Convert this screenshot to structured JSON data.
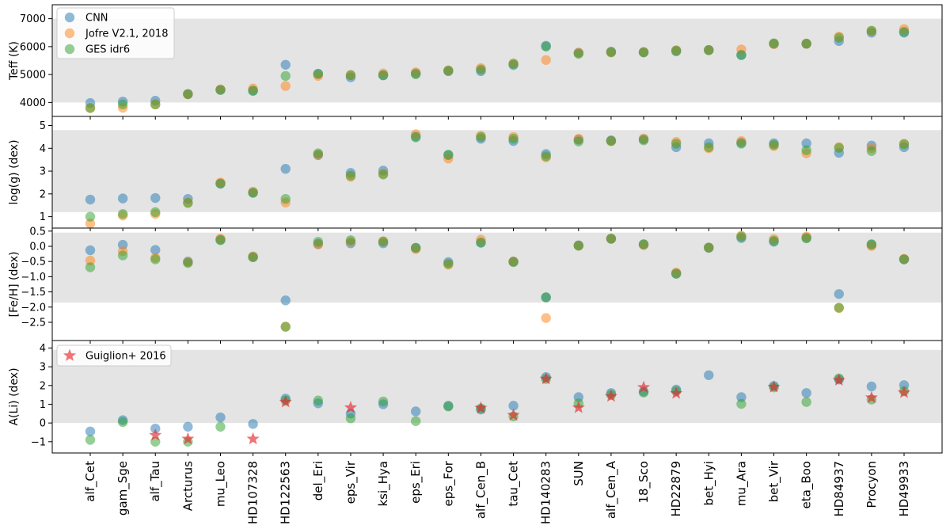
{
  "chart_data": {
    "type": "scatter",
    "categories": [
      "alf_Cet",
      "gam_Sge",
      "alf_Tau",
      "Arcturus",
      "mu_Leo",
      "HD107328",
      "HD122563",
      "del_Eri",
      "eps_Vir",
      "ksi_Hya",
      "eps_Eri",
      "eps_For",
      "alf_Cen_B",
      "tau_Cet",
      "HD140283",
      "SUN",
      "alf_Cen_A",
      "18_Sco",
      "HD22879",
      "bet_Hyi",
      "mu_Ara",
      "bet_Vir",
      "eta_Boo",
      "HD84937",
      "Procyon",
      "HD49933"
    ],
    "colors": {
      "cnn": "#1f77b4",
      "jofre": "#ff7f0e",
      "ges": "#2ca02c",
      "guiglion": "#e8282d",
      "band": "#e4e4e4"
    },
    "legend_top": [
      {
        "key": "cnn",
        "label": "CNN"
      },
      {
        "key": "jofre",
        "label": "Jofre V2.1, 2018"
      },
      {
        "key": "ges",
        "label": "GES idr6"
      }
    ],
    "legend_bottom": [
      {
        "key": "guiglion",
        "label": "Guiglion+ 2016"
      }
    ],
    "panels": [
      {
        "ylabel": "Teff (K)",
        "ylim": [
          3500,
          7500
        ],
        "yticks": [
          4000,
          5000,
          6000,
          7000
        ],
        "ytick_labels": [
          "4000",
          "5000",
          "6000",
          "7000"
        ],
        "band": [
          4000,
          7000
        ],
        "series": {
          "cnn": [
            3980,
            4030,
            4060,
            4300,
            4450,
            4420,
            5350,
            5020,
            4900,
            4970,
            5040,
            5120,
            5120,
            5340,
            6030,
            5780,
            5820,
            5800,
            5830,
            5880,
            5700,
            6100,
            6100,
            6200,
            6500,
            6500
          ],
          "jofre": [
            3800,
            3810,
            3930,
            4290,
            4470,
            4500,
            4590,
            4950,
            4980,
            5040,
            5080,
            5150,
            5230,
            5400,
            5520,
            5780,
            5790,
            5810,
            5870,
            5880,
            5900,
            6090,
            6100,
            6360,
            6560,
            6630
          ],
          "ges": [
            3800,
            3930,
            3930,
            4300,
            4450,
            4420,
            4950,
            5030,
            4980,
            4980,
            5010,
            5140,
            5180,
            5380,
            6000,
            5740,
            5800,
            5790,
            5860,
            5870,
            5700,
            6120,
            6110,
            6320,
            6570,
            6530
          ]
        }
      },
      {
        "ylabel": "log(g) (dex)",
        "ylim": [
          0.5,
          5.4
        ],
        "yticks": [
          1,
          2,
          3,
          4,
          5
        ],
        "ytick_labels": [
          "1",
          "2",
          "3",
          "4",
          "5"
        ],
        "band": [
          1.2,
          4.8
        ],
        "series": {
          "cnn": [
            1.75,
            1.8,
            1.82,
            1.78,
            2.45,
            2.05,
            3.1,
            3.7,
            2.92,
            3.02,
            4.52,
            3.7,
            4.42,
            4.32,
            3.75,
            4.38,
            4.35,
            4.4,
            4.05,
            4.22,
            4.25,
            4.22,
            4.22,
            3.8,
            4.12,
            4.05
          ],
          "jofre": [
            0.7,
            1.05,
            1.12,
            1.62,
            2.5,
            2.1,
            1.62,
            3.72,
            2.75,
            2.88,
            4.62,
            3.55,
            4.55,
            4.5,
            3.6,
            4.42,
            4.32,
            4.43,
            4.28,
            4.0,
            4.32,
            4.1,
            3.78,
            4.05,
            4.0,
            4.2
          ],
          "ges": [
            1.0,
            1.12,
            1.2,
            1.6,
            2.45,
            2.05,
            1.78,
            3.78,
            2.8,
            2.85,
            4.48,
            3.72,
            4.5,
            4.42,
            3.65,
            4.3,
            4.32,
            4.35,
            4.2,
            4.05,
            4.2,
            4.15,
            3.92,
            4.02,
            3.88,
            4.18
          ]
        }
      },
      {
        "ylabel": "[Fe/H] (dex)",
        "ylim": [
          -3.1,
          0.6
        ],
        "yticks": [
          0.5,
          0.0,
          -0.5,
          -1.0,
          -1.5,
          -2.0,
          -2.5
        ],
        "ytick_labels": [
          "0.5",
          "0.0",
          "−0.5",
          "−1.0",
          "−1.5",
          "−2.0",
          "−2.5"
        ],
        "band": [
          -1.85,
          0.45
        ],
        "series": {
          "cnn": [
            -0.13,
            0.05,
            -0.12,
            -0.5,
            0.22,
            -0.35,
            -1.78,
            0.08,
            0.1,
            0.1,
            -0.05,
            -0.52,
            0.12,
            -0.5,
            -1.68,
            0.03,
            0.25,
            0.06,
            -0.9,
            -0.05,
            0.27,
            0.15,
            0.28,
            -1.57,
            0.05,
            -0.43
          ],
          "jofre": [
            -0.47,
            -0.16,
            -0.38,
            -0.52,
            0.25,
            -0.33,
            -2.64,
            0.06,
            0.15,
            0.16,
            -0.09,
            -0.6,
            0.22,
            -0.5,
            -2.36,
            0.02,
            0.25,
            0.04,
            -0.86,
            -0.04,
            0.35,
            0.24,
            0.32,
            -2.03,
            0.01,
            -0.41
          ],
          "ges": [
            -0.69,
            -0.3,
            -0.43,
            -0.55,
            0.2,
            -0.36,
            -2.65,
            0.15,
            0.2,
            0.16,
            -0.05,
            -0.58,
            0.12,
            -0.52,
            -1.68,
            0.02,
            0.25,
            0.07,
            -0.9,
            -0.04,
            0.32,
            0.18,
            0.26,
            -2.02,
            0.07,
            -0.43
          ]
        }
      },
      {
        "ylabel": "A(Li) (dex)",
        "ylim": [
          -1.6,
          4.4
        ],
        "yticks": [
          -1,
          0,
          1,
          2,
          3,
          4
        ],
        "ytick_labels": [
          "−1",
          "0",
          "1",
          "2",
          "3",
          "4"
        ],
        "band": [
          0.0,
          3.9
        ],
        "series": {
          "cnn": [
            -0.45,
            0.15,
            -0.3,
            -0.2,
            0.3,
            -0.05,
            1.3,
            1.05,
            0.5,
            1.0,
            0.62,
            0.92,
            0.72,
            0.92,
            2.45,
            1.38,
            1.6,
            1.68,
            1.78,
            2.55,
            1.38,
            1.98,
            1.6,
            2.32,
            1.95,
            2.02
          ],
          "ges": [
            -0.9,
            0.05,
            -1.0,
            -1.0,
            -0.2,
            null,
            1.2,
            1.2,
            0.25,
            1.15,
            0.1,
            0.88,
            0.78,
            0.35,
            2.35,
            1.05,
            1.5,
            1.62,
            1.7,
            null,
            1.02,
            1.9,
            1.12,
            2.38,
            1.25,
            1.7
          ],
          "guiglion": [
            null,
            null,
            -0.65,
            -0.85,
            null,
            -0.85,
            1.12,
            null,
            0.82,
            null,
            null,
            null,
            0.8,
            0.42,
            2.35,
            0.82,
            1.42,
            1.9,
            1.58,
            null,
            null,
            1.92,
            null,
            2.28,
            1.35,
            1.62
          ]
        }
      }
    ]
  }
}
